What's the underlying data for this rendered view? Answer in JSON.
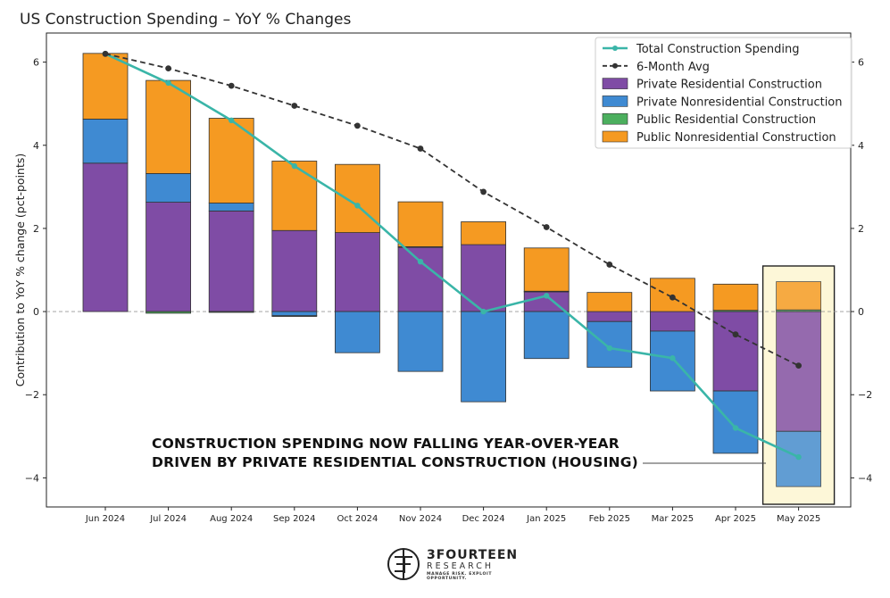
{
  "title": "US Construction Spending – YoY % Changes",
  "chart_data": {
    "type": "bar",
    "stacked": true,
    "categories": [
      "Jun 2024",
      "Jul 2024",
      "Aug 2024",
      "Sep 2024",
      "Oct 2024",
      "Nov 2024",
      "Dec 2024",
      "Jan 2025",
      "Feb 2025",
      "Mar 2025",
      "Apr 2025",
      "May 2025"
    ],
    "ylabel": "Contribution to YoY % change (pct-points)",
    "ylim": [
      -4.7,
      6.7
    ],
    "yticks": [
      -4,
      -2,
      0,
      2,
      4,
      6
    ],
    "legend_position": "top-right",
    "grid": false,
    "series": [
      {
        "name": "Private Residential Construction",
        "color": "#7f4ca5",
        "values": [
          3.57,
          2.63,
          2.42,
          1.95,
          1.9,
          1.55,
          1.61,
          0.48,
          -0.24,
          -0.47,
          -1.91,
          -2.88
        ]
      },
      {
        "name": "Private Nonresidential Construction",
        "color": "#3f8ad2",
        "values": [
          1.06,
          0.69,
          0.19,
          -0.1,
          -0.99,
          -1.44,
          -2.17,
          -1.13,
          -1.1,
          -1.44,
          -1.5,
          -1.33
        ]
      },
      {
        "name": "Public Residential Construction",
        "color": "#4caf5e",
        "values": [
          0.0,
          -0.04,
          -0.02,
          -0.01,
          0.0,
          0.01,
          0.0,
          0.01,
          0.0,
          0.0,
          0.03,
          0.04
        ]
      },
      {
        "name": "Public Nonresidential Construction",
        "color": "#f59a22",
        "values": [
          1.58,
          2.24,
          2.04,
          1.67,
          1.64,
          1.08,
          0.55,
          1.04,
          0.46,
          0.8,
          0.63,
          0.68
        ]
      }
    ],
    "lines": [
      {
        "name": "Total Construction Spending",
        "color": "#3ab5a8",
        "values": [
          6.2,
          5.5,
          4.6,
          3.5,
          2.55,
          1.2,
          0.0,
          0.38,
          -0.88,
          -1.12,
          -2.8,
          -3.5
        ]
      },
      {
        "name": "6-Month Avg",
        "color": "#333333",
        "dashed": true,
        "values": [
          6.2,
          5.85,
          5.43,
          4.95,
          4.47,
          3.92,
          2.88,
          2.03,
          1.13,
          0.34,
          -0.55,
          -1.3
        ]
      }
    ],
    "highlight_category": "May 2025",
    "annotation": [
      "CONSTRUCTION SPENDING NOW FALLING YEAR-OVER-YEAR",
      "DRIVEN BY PRIVATE RESIDENTIAL CONSTRUCTION (HOUSING)"
    ]
  },
  "logo": {
    "name": "3FOURTEEN",
    "sub": "RESEARCH",
    "tagline": "MANAGE RISK. EXPLOIT OPPORTUNITY."
  }
}
